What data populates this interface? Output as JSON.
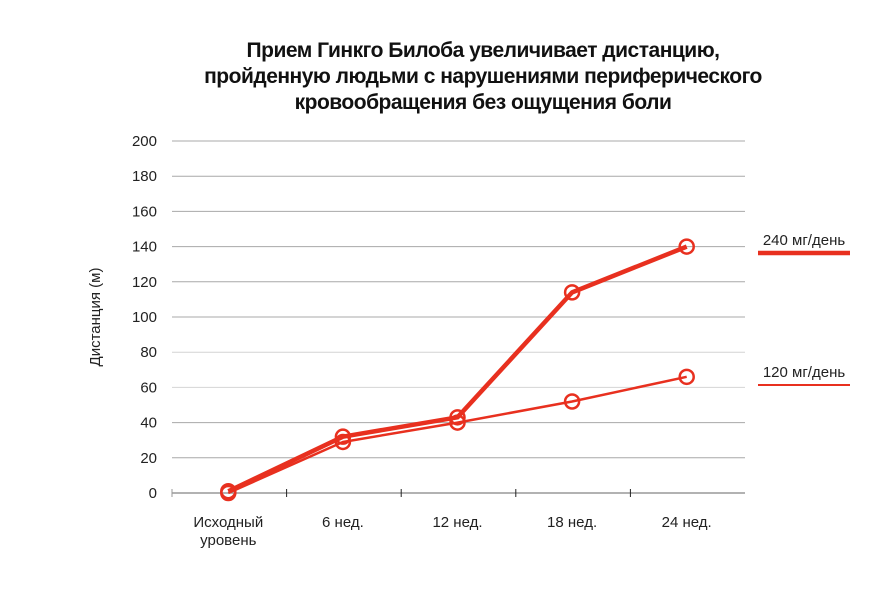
{
  "chart_data": {
    "type": "line",
    "title_lines": [
      "Прием Гинкго Билоба увеличивает дистанцию,",
      "пройденную людьми с нарушениями периферического",
      "кровообращения без ощущения боли"
    ],
    "xlabel": "",
    "ylabel": "Дистанция (м)",
    "categories": [
      [
        "Исходный",
        "уровень"
      ],
      [
        "6 нед."
      ],
      [
        "12 нед."
      ],
      [
        "18 нед."
      ],
      [
        "24 нед."
      ]
    ],
    "ylim": [
      0,
      200
    ],
    "yticks": [
      0,
      20,
      40,
      60,
      80,
      100,
      120,
      140,
      160,
      180,
      200
    ],
    "grid": true,
    "legend": "right",
    "series": [
      {
        "name": "240 мг/день",
        "values": [
          1,
          32,
          43,
          114,
          140
        ],
        "color": "#e8301f",
        "width": "thick"
      },
      {
        "name": "120 мг/день",
        "values": [
          0,
          29,
          40,
          52,
          66
        ],
        "color": "#e8301f",
        "width": "thin"
      }
    ]
  }
}
